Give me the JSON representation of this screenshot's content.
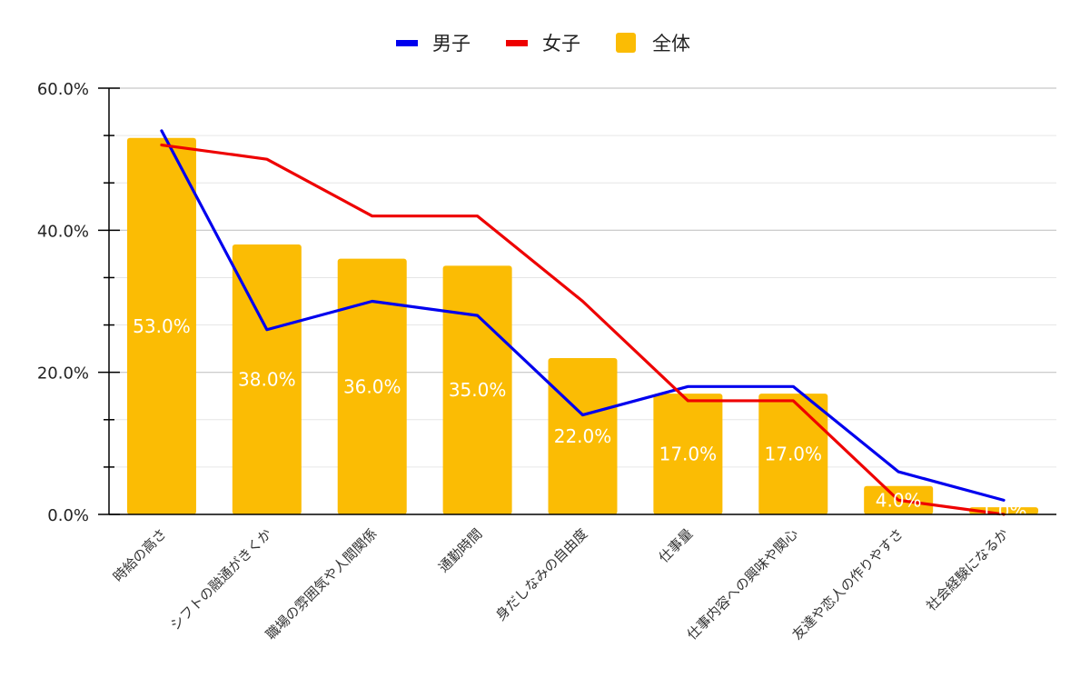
{
  "chart_data": {
    "type": "bar",
    "title": "",
    "xlabel": "",
    "ylabel": "",
    "ylim": [
      0,
      60
    ],
    "yticks": [
      "0.0%",
      "20.0%",
      "40.0%",
      "60.0%"
    ],
    "categories": [
      "時給の高さ",
      "シフトの融通がきくか",
      "職場の雰囲気や人間関係",
      "通勤時間",
      "身だしなみの自由度",
      "仕事量",
      "仕事内容への興味や関心",
      "友達や恋人の作りやすさ",
      "社会経験になるか"
    ],
    "series": [
      {
        "name": "全体",
        "kind": "bar",
        "color": "#FBBC04",
        "values": [
          53,
          38,
          36,
          35,
          22,
          17,
          17,
          4,
          1
        ],
        "labels": [
          "53.0%",
          "38.0%",
          "36.0%",
          "35.0%",
          "22.0%",
          "17.0%",
          "17.0%",
          "4.0%",
          "1.0%"
        ]
      },
      {
        "name": "男子",
        "kind": "line",
        "color": "#0000EE",
        "values": [
          54,
          26,
          30,
          28,
          14,
          18,
          18,
          6,
          2
        ]
      },
      {
        "name": "女子",
        "kind": "line",
        "color": "#EE0000",
        "values": [
          52,
          50,
          42,
          42,
          30,
          16,
          16,
          2,
          0
        ]
      }
    ],
    "legend": {
      "position": "top",
      "items": [
        {
          "label": "男子",
          "color": "#0000EE",
          "marker": "line"
        },
        {
          "label": "女子",
          "color": "#EE0000",
          "marker": "line"
        },
        {
          "label": "全体",
          "color": "#FBBC04",
          "marker": "box"
        }
      ]
    },
    "grid": true
  }
}
